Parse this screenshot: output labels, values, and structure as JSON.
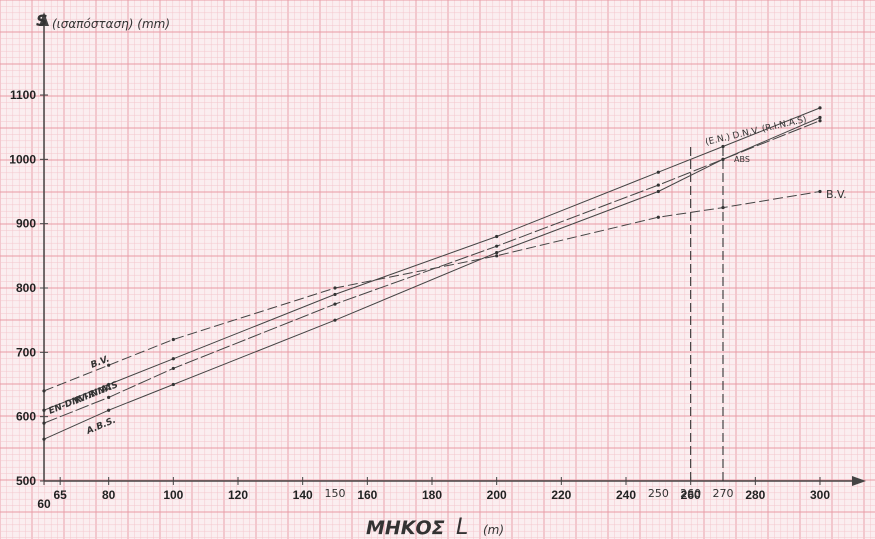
{
  "chart_data": {
    "type": "line",
    "title": "",
    "ylabel": "S",
    "ylabel_note": "(ισαπόσταση) (mm)",
    "xlabel": "ΜΗΚΟΣ",
    "xlabel_var": "L",
    "xlabel_unit": "(m)",
    "xlim": [
      60,
      300
    ],
    "ylim": [
      500,
      1100
    ],
    "x_ticks": [
      "60",
      "65",
      "80",
      "100",
      "120",
      "140",
      "160",
      "180",
      "200",
      "220",
      "240",
      "260",
      "280",
      "300"
    ],
    "x_ticks_handwritten": [
      "150",
      "250",
      "260",
      "270"
    ],
    "y_ticks": [
      "500",
      "600",
      "700",
      "800",
      "900",
      "1000",
      "1100"
    ],
    "grid": true,
    "series": [
      {
        "name": "B.V.",
        "label_end": "B.V.",
        "label_start": "B.V.",
        "color": "#444444",
        "x": [
          60,
          80,
          100,
          150,
          200,
          250,
          270,
          300
        ],
        "y": [
          640,
          680,
          720,
          800,
          850,
          910,
          925,
          950
        ]
      },
      {
        "name": "EN-DNV-RINA",
        "label_end": "(E.N.) D.N.V. (R.I.N.A.S)",
        "label_start": "EN-DNV-RINAS",
        "color": "#444444",
        "x": [
          60,
          80,
          100,
          150,
          200,
          250,
          270,
          300
        ],
        "y": [
          610,
          650,
          690,
          790,
          880,
          980,
          1020,
          1080
        ]
      },
      {
        "name": "R.I.N.A.",
        "label_end": "",
        "label_start": "R.I.N.A.",
        "color": "#444444",
        "x": [
          60,
          80,
          100,
          150,
          200,
          250,
          270,
          300
        ],
        "y": [
          590,
          630,
          675,
          775,
          865,
          960,
          1000,
          1060
        ]
      },
      {
        "name": "A.B.S.",
        "label_end": "ABS",
        "label_start": "A.B.S.",
        "color": "#444444",
        "x": [
          60,
          80,
          100,
          150,
          200,
          250,
          270,
          300
        ],
        "y": [
          565,
          610,
          650,
          750,
          855,
          950,
          1000,
          1065
        ]
      }
    ],
    "reference_lines_x": [
      260,
      270
    ]
  },
  "colors": {
    "paper": "#fbeef0",
    "grid_minor": "#f3c6cc",
    "grid_major": "#e89aa4",
    "ink": "#333333",
    "axis": "#444444"
  }
}
